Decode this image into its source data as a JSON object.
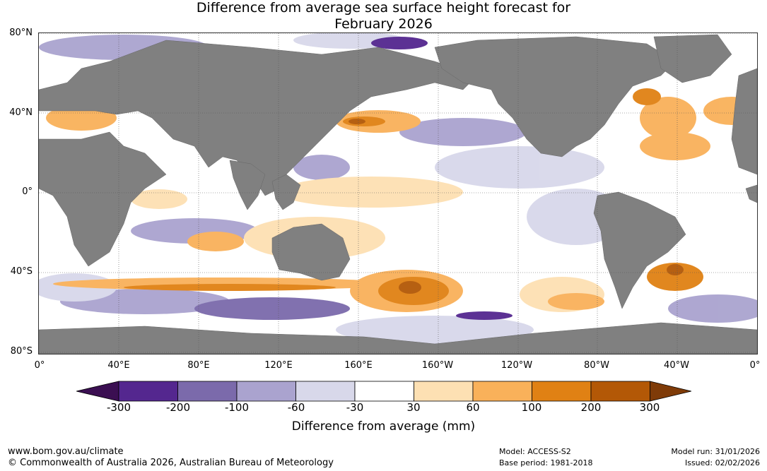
{
  "title": {
    "line1": "Difference from average sea surface height forecast for",
    "line2": "February 2026"
  },
  "map": {
    "lat_labels": [
      "80°N",
      "40°N",
      "0°",
      "40°S",
      "80°S"
    ],
    "lon_labels": [
      "0°",
      "40°E",
      "80°E",
      "120°E",
      "160°E",
      "160°W",
      "120°W",
      "80°W",
      "40°W",
      "0°"
    ],
    "land_color": "#808080",
    "grid_color": "#555555"
  },
  "colorbar": {
    "ticks": [
      "-300",
      "-200",
      "-100",
      "-60",
      "-30",
      "30",
      "60",
      "100",
      "200",
      "300"
    ],
    "colors": [
      "#3b0f52",
      "#54278f",
      "#7b6aab",
      "#aaa3cf",
      "#d8d8ea",
      "#ffffff",
      "#fde0b3",
      "#f9b15a",
      "#e08114",
      "#b35806",
      "#7f3b08"
    ],
    "title": "Difference from average (mm)"
  },
  "footer": {
    "website": "www.bom.gov.au/climate",
    "copyright": "© Commonwealth of Australia 2026, Australian Bureau of Meteorology",
    "model": "Model: ACCESS-S2",
    "base_period": "Base period: 1981-2018",
    "model_run": "Model run: 31/01/2026",
    "issued": "Issued: 02/02/2026"
  }
}
